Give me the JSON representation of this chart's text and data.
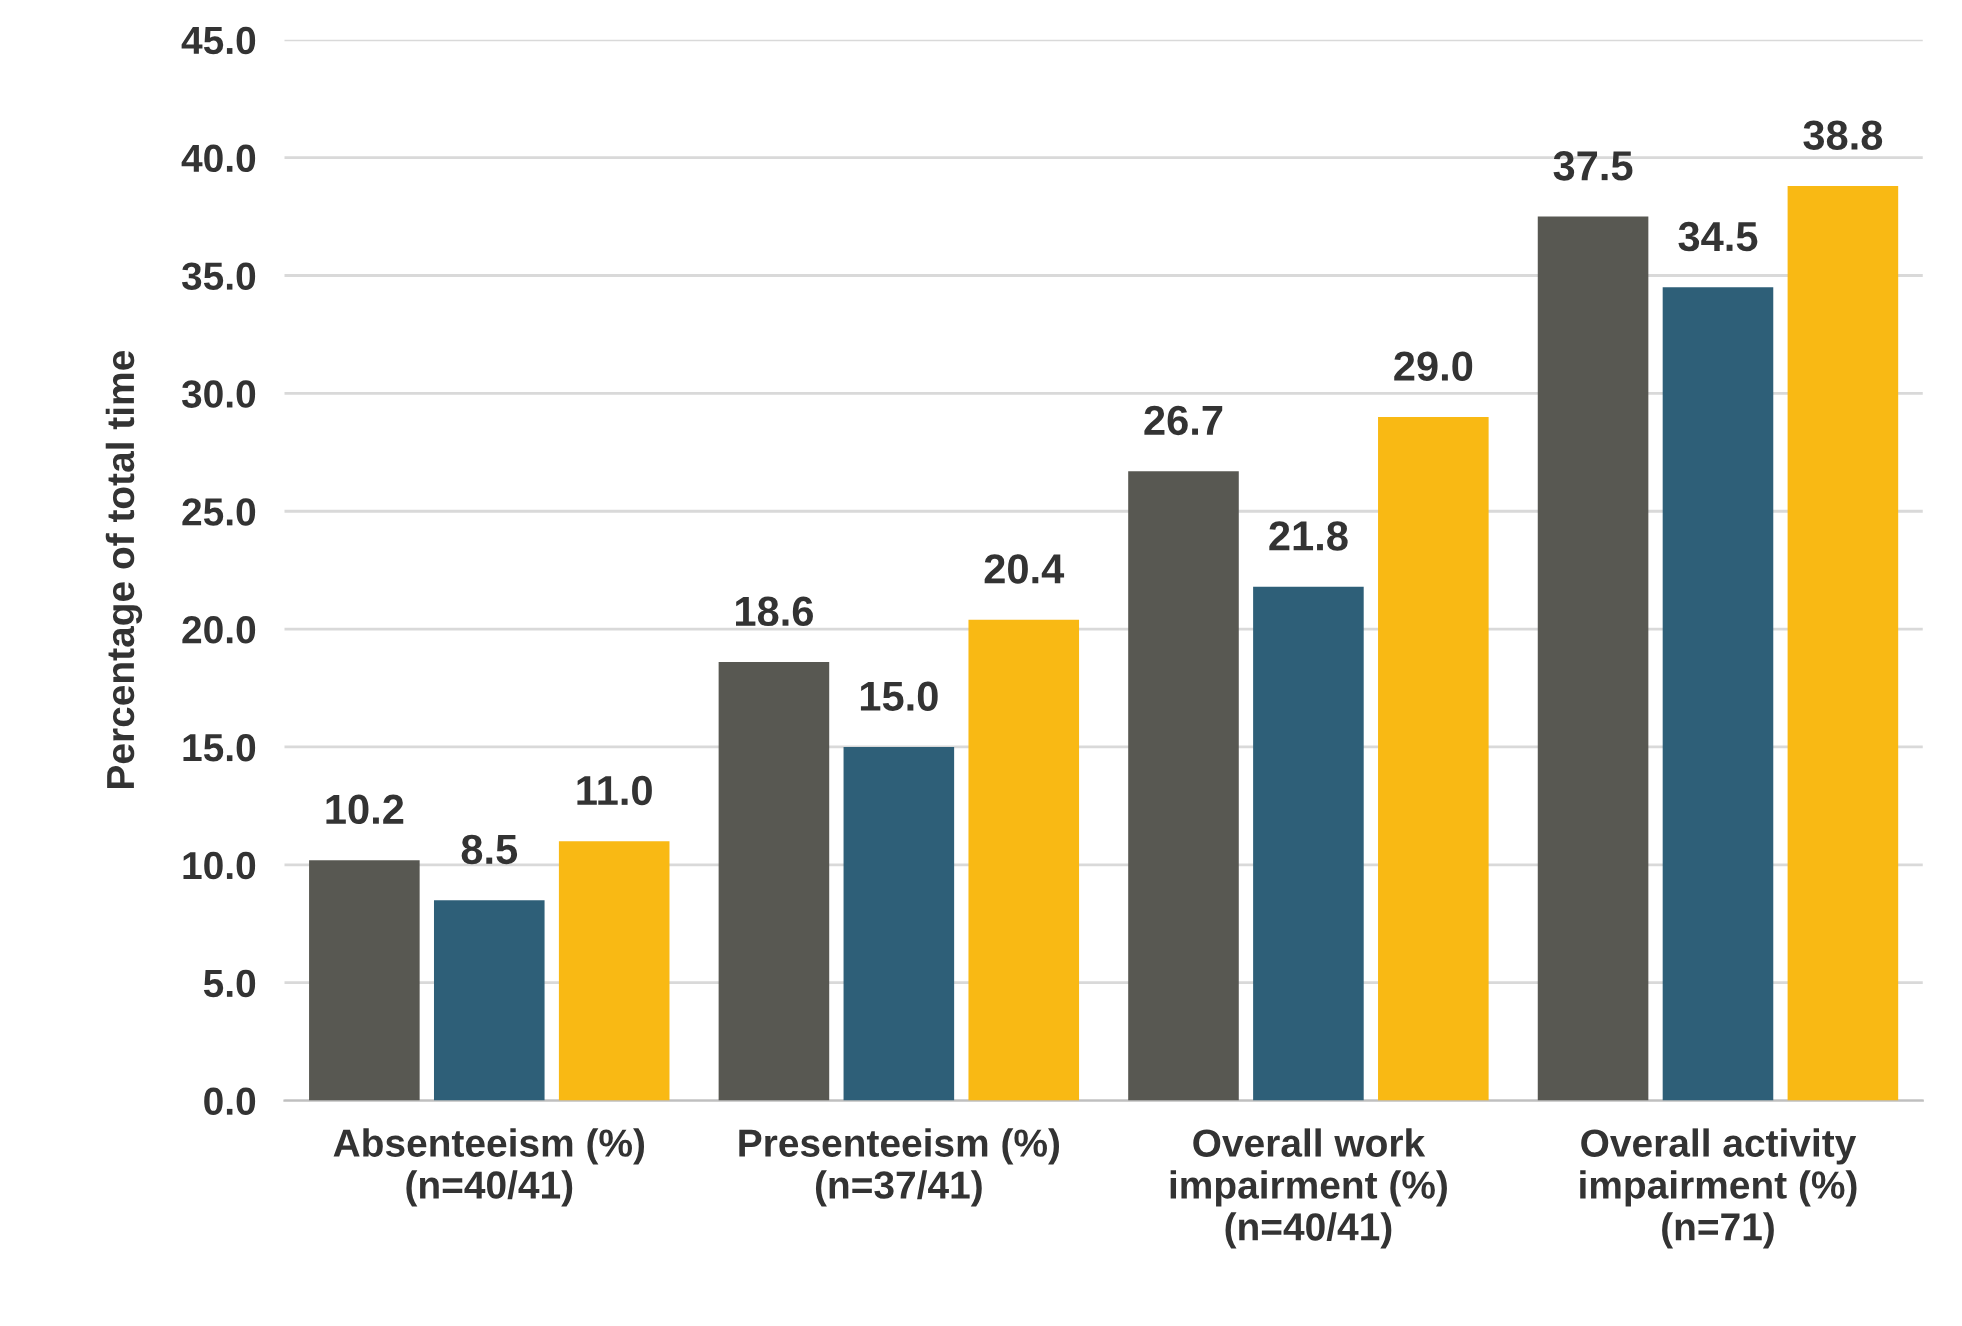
{
  "chart_data": {
    "type": "bar",
    "ylabel": "Percentage of total time",
    "categories": [
      "Absenteeism (%)\n(n=40/41)",
      "Presenteeism (%)\n(n=37/41)",
      "Overall work\nimpairment (%)\n(n=40/41)",
      "Overall activity\nimpairment (%)\n(n=71)"
    ],
    "series": [
      {
        "color": "#585852",
        "values": [
          10.2,
          18.6,
          26.7,
          37.5
        ],
        "value_labels": [
          "10.2",
          "18.6",
          "26.7",
          "37.5"
        ]
      },
      {
        "color": "#2e5f78",
        "values": [
          8.5,
          15.0,
          21.8,
          34.5
        ],
        "value_labels": [
          "8.5",
          "15.0",
          "21.8",
          "34.5"
        ]
      },
      {
        "color": "#f9b914",
        "values": [
          11.0,
          20.4,
          29.0,
          38.8
        ],
        "value_labels": [
          "11.0",
          "20.4",
          "29.0",
          "38.8"
        ]
      }
    ],
    "ylim": [
      0,
      45
    ],
    "yticks": [
      {
        "value": 0,
        "label": "0.0"
      },
      {
        "value": 5,
        "label": "5.0"
      },
      {
        "value": 10,
        "label": "10.0"
      },
      {
        "value": 15,
        "label": "15.0"
      },
      {
        "value": 20,
        "label": "20.0"
      },
      {
        "value": 25,
        "label": "25.0"
      },
      {
        "value": 30,
        "label": "30.0"
      },
      {
        "value": 35,
        "label": "35.0"
      },
      {
        "value": 40,
        "label": "40.0"
      },
      {
        "value": 45,
        "label": "45.0"
      }
    ],
    "grid": "y",
    "legend": false
  }
}
